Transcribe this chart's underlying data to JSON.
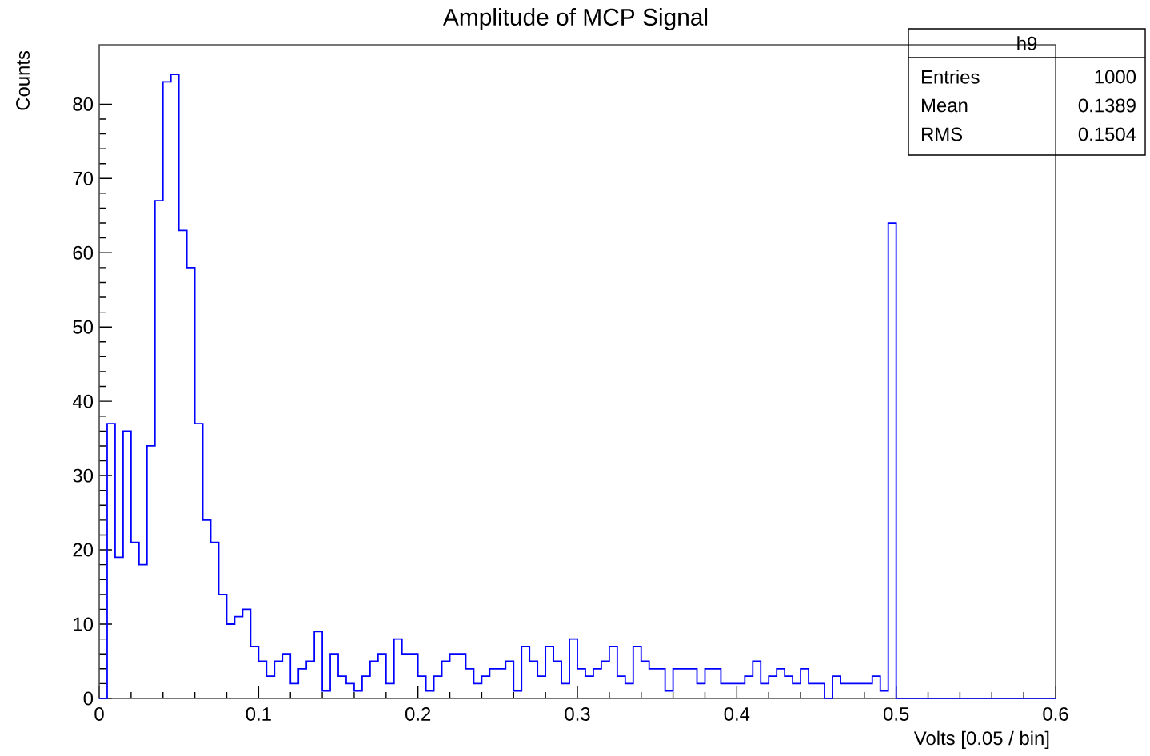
{
  "chart_data": {
    "type": "histogram",
    "title": "Amplitude of MCP Signal",
    "xlabel": "Volts [0.05 / bin]",
    "ylabel": "Counts",
    "color": "#0000ff",
    "bins": [
      0,
      0.005,
      0.01,
      0.015,
      0.02,
      0.025,
      0.03,
      0.035,
      0.04,
      0.045,
      0.05,
      0.055,
      0.06,
      0.065,
      0.07,
      0.075,
      0.08,
      0.085,
      0.09,
      0.095,
      0.1,
      0.105,
      0.11,
      0.115,
      0.12,
      0.125,
      0.13,
      0.135,
      0.14,
      0.145,
      0.15,
      0.155,
      0.16,
      0.165,
      0.17,
      0.175,
      0.18,
      0.185,
      0.19,
      0.195,
      0.2,
      0.205,
      0.21,
      0.215,
      0.22,
      0.225,
      0.23,
      0.235,
      0.24,
      0.245,
      0.25,
      0.255,
      0.26,
      0.265,
      0.27,
      0.275,
      0.28,
      0.285,
      0.29,
      0.295,
      0.3,
      0.305,
      0.31,
      0.315,
      0.32,
      0.325,
      0.33,
      0.335,
      0.34,
      0.345,
      0.35,
      0.355,
      0.36,
      0.365,
      0.37,
      0.375,
      0.38,
      0.385,
      0.39,
      0.395,
      0.4,
      0.405,
      0.41,
      0.415,
      0.42,
      0.425,
      0.43,
      0.435,
      0.44,
      0.445,
      0.45,
      0.455,
      0.46,
      0.465,
      0.47,
      0.475,
      0.48,
      0.485,
      0.49,
      0.495,
      0.5,
      0.505,
      0.51,
      0.515,
      0.52,
      0.525,
      0.53,
      0.535,
      0.54,
      0.545,
      0.55,
      0.555,
      0.56,
      0.565,
      0.57,
      0.575,
      0.58,
      0.585,
      0.59,
      0.595,
      0.6
    ],
    "values": [
      0,
      37,
      19,
      36,
      21,
      18,
      34,
      67,
      83,
      84,
      63,
      58,
      37,
      24,
      21,
      14,
      10,
      11,
      12,
      7,
      5,
      3,
      5,
      6,
      2,
      4,
      5,
      9,
      1,
      6,
      3,
      2,
      1,
      3,
      5,
      6,
      2,
      8,
      6,
      6,
      3,
      1,
      3,
      5,
      6,
      6,
      4,
      2,
      3,
      4,
      4,
      5,
      1,
      7,
      5,
      3,
      7,
      5,
      2,
      8,
      4,
      3,
      4,
      5,
      7,
      3,
      2,
      7,
      5,
      4,
      4,
      1,
      4,
      4,
      4,
      2,
      4,
      4,
      2,
      2,
      2,
      3,
      5,
      2,
      3,
      4,
      3,
      2,
      4,
      2,
      2,
      0,
      3,
      2,
      2,
      2,
      2,
      3,
      1,
      64,
      0,
      0,
      0,
      0,
      0,
      0,
      0,
      0,
      0,
      0,
      0,
      0,
      0,
      0,
      0,
      0,
      0,
      0,
      0,
      0
    ],
    "xlim": [
      0,
      0.6
    ],
    "ylim": [
      0,
      88
    ],
    "xticks": [
      0,
      0.1,
      0.2,
      0.3,
      0.4,
      0.5,
      0.6
    ],
    "yticks": [
      0,
      10,
      20,
      30,
      40,
      50,
      60,
      70,
      80
    ],
    "annotations": [
      "h9",
      "Entries",
      "1000",
      "Mean",
      "0.1389",
      "RMS",
      "0.1504"
    ]
  }
}
